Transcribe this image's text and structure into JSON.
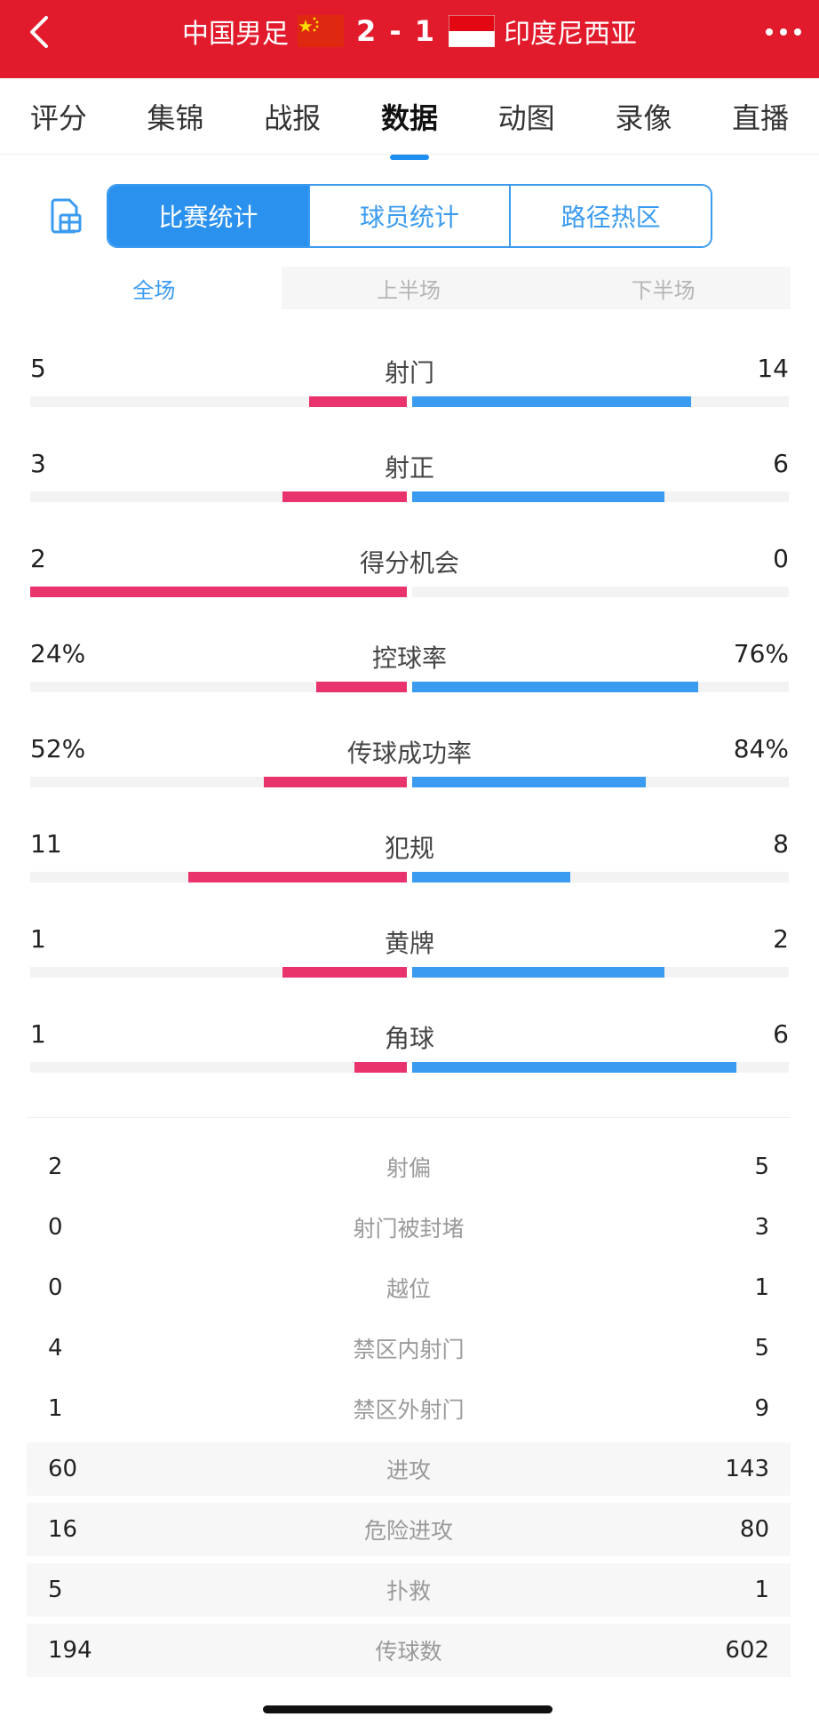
{
  "header": {
    "home_team": "中国男足",
    "away_team": "印度尼西亚",
    "score": "2 - 1",
    "bg_color": "#e21b2c"
  },
  "nav_tabs": [
    "评分",
    "集锦",
    "战报",
    "数据",
    "动图",
    "录像",
    "直播"
  ],
  "active_nav_tab": "数据",
  "segment_tabs": [
    "比赛统计",
    "球员统计",
    "路径热区"
  ],
  "active_segment": "比赛统计",
  "half_tabs": [
    "全场",
    "上半场",
    "下半场"
  ],
  "active_half": "全场",
  "colors": {
    "home": "#e8336d",
    "away": "#3b9bf0",
    "accent": "#2b91ee"
  },
  "bar_stats": [
    {
      "label": "射门",
      "home": "5",
      "away": "14",
      "home_ratio": 0.26,
      "away_ratio": 0.74
    },
    {
      "label": "射正",
      "home": "3",
      "away": "6",
      "home_ratio": 0.33,
      "away_ratio": 0.67
    },
    {
      "label": "得分机会",
      "home": "2",
      "away": "0",
      "home_ratio": 1.0,
      "away_ratio": 0.0
    },
    {
      "label": "控球率",
      "home": "24%",
      "away": "76%",
      "home_ratio": 0.24,
      "away_ratio": 0.76
    },
    {
      "label": "传球成功率",
      "home": "52%",
      "away": "84%",
      "home_ratio": 0.38,
      "away_ratio": 0.62
    },
    {
      "label": "犯规",
      "home": "11",
      "away": "8",
      "home_ratio": 0.58,
      "away_ratio": 0.42
    },
    {
      "label": "黄牌",
      "home": "1",
      "away": "2",
      "home_ratio": 0.33,
      "away_ratio": 0.67
    },
    {
      "label": "角球",
      "home": "1",
      "away": "6",
      "home_ratio": 0.14,
      "away_ratio": 0.86
    }
  ],
  "list_stats": [
    {
      "label": "射偏",
      "home": "2",
      "away": "5"
    },
    {
      "label": "射门被封堵",
      "home": "0",
      "away": "3"
    },
    {
      "label": "越位",
      "home": "0",
      "away": "1"
    },
    {
      "label": "禁区内射门",
      "home": "4",
      "away": "5"
    },
    {
      "label": "禁区外射门",
      "home": "1",
      "away": "9"
    },
    {
      "label": "进攻",
      "home": "60",
      "away": "143"
    },
    {
      "label": "危险进攻",
      "home": "16",
      "away": "80"
    },
    {
      "label": "扑救",
      "home": "5",
      "away": "1"
    },
    {
      "label": "传球数",
      "home": "194",
      "away": "602"
    }
  ],
  "icons": [
    "back-icon",
    "more-icon",
    "china-flag-icon",
    "indonesia-flag-icon",
    "document-icon"
  ]
}
